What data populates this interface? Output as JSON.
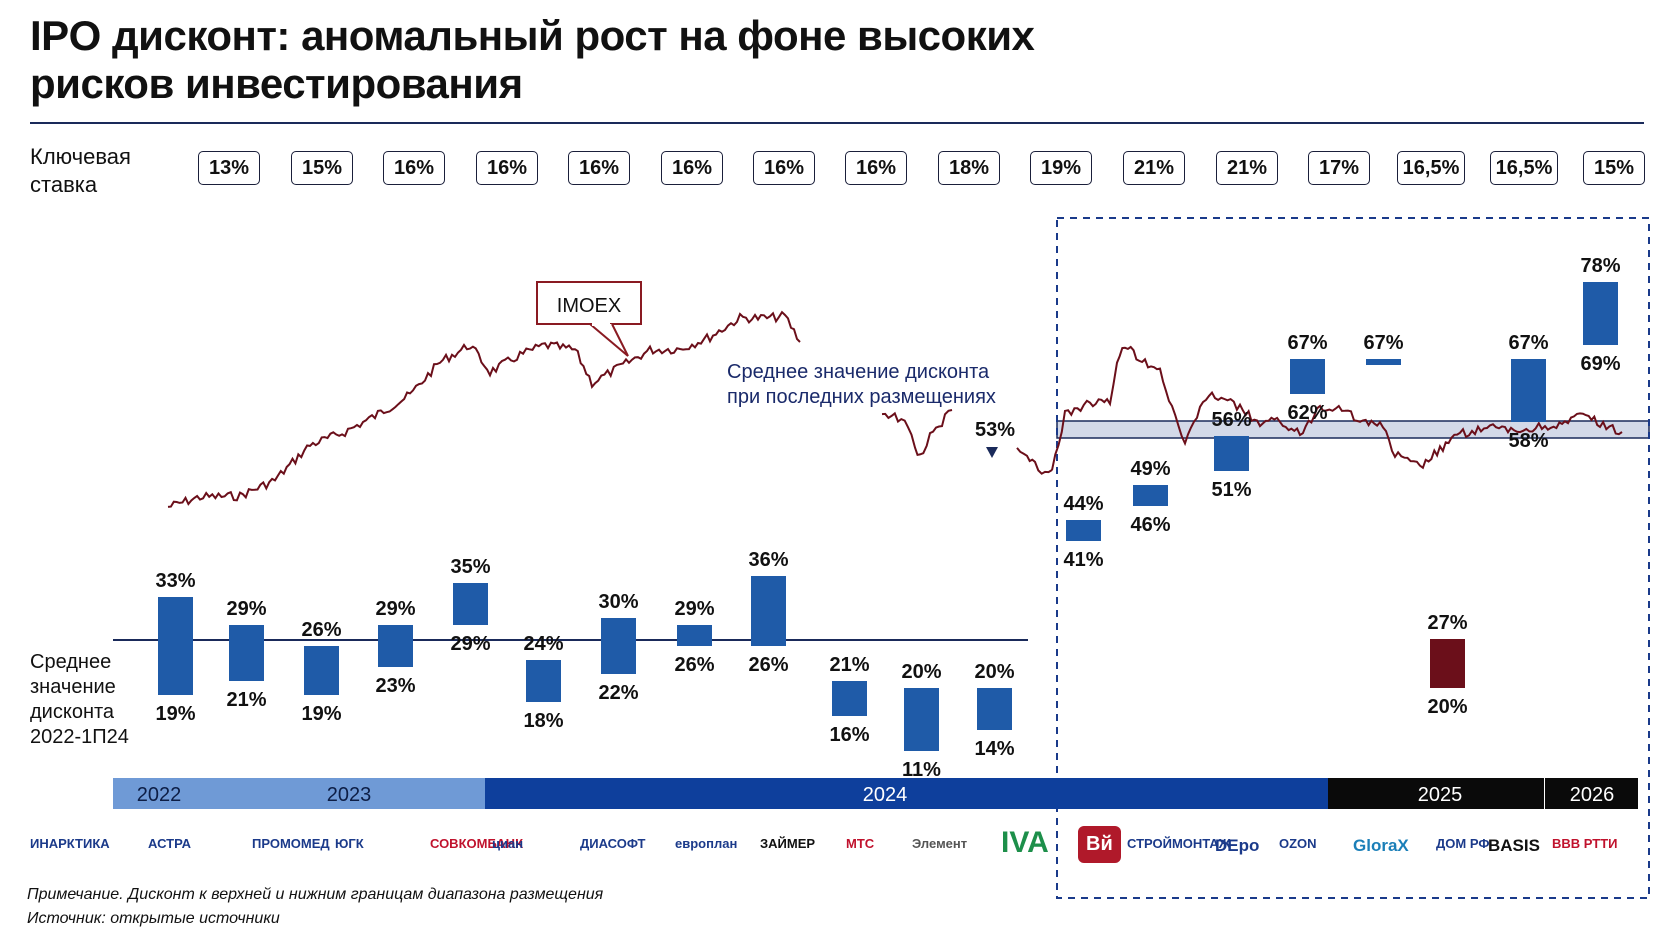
{
  "title_line1": "IPO дисконт: аномальный рост на фоне высоких",
  "title_line2": "рисков инвестирования",
  "key_rate": {
    "label_line1": "Ключевая",
    "label_line2": "ставка",
    "values": [
      "13%",
      "15%",
      "16%",
      "16%",
      "16%",
      "16%",
      "16%",
      "16%",
      "18%",
      "19%",
      "21%",
      "21%",
      "17%",
      "16,5%",
      "16,5%",
      "15%"
    ]
  },
  "avg_label": [
    "Среднее",
    "значение",
    "дисконта",
    "2022-1П24"
  ],
  "imoex_label": "IMOEX",
  "recent_avg_label_line1": "Среднее значение дисконта",
  "recent_avg_label_line2": "при последних размещениях",
  "recent_avg_value": "53%",
  "colors": {
    "bar": "#1f5ba8",
    "bar_dark": "#6b0f1a",
    "imoex": "#6b0f1a",
    "timeline_2022_2023": "#6f9ad6",
    "timeline_2024": "#0e3f9c",
    "timeline_2025_2026": "#0a0a0a",
    "dashed_frame": "#1a3a8a"
  },
  "timeline": [
    {
      "label": "2022"
    },
    {
      "label": "2023"
    },
    {
      "label": "2024"
    },
    {
      "label": "2025"
    },
    {
      "label": "2026"
    }
  ],
  "chart_data": {
    "type": "bar",
    "title": "IPO дисконт: аномальный рост на фоне высоких рисков инвестирования",
    "description_series": "floating range bars: discount to upper and lower bound of placement range",
    "ylim": [
      0,
      80
    ],
    "average_2022_1H24": 27,
    "recent_average": 53,
    "categories": [
      "ИНАРКТИКА",
      "АСТРА",
      "ПРОМОМЕД",
      "ЮГК",
      "СОВКОМБАНК",
      "ЦИАН",
      "ДИАСОФТ",
      "ЕВРОПЛАН",
      "ЗАЙМЕР",
      "МТС",
      "Элемент",
      "IVA",
      "Вуш/Вй",
      "Строймонтаж",
      "DEpo",
      "OZON",
      "GloraX",
      "ДОМ.РФ",
      "BASIS",
      "ВВВ РТТИ"
    ],
    "ranges": [
      {
        "high": 33,
        "low": 19
      },
      {
        "high": 29,
        "low": 21
      },
      {
        "high": 26,
        "low": 19
      },
      {
        "high": 29,
        "low": 23
      },
      {
        "high": 35,
        "low": 29
      },
      {
        "high": 24,
        "low": 18
      },
      {
        "high": 30,
        "low": 22
      },
      {
        "high": 29,
        "low": 26
      },
      {
        "high": 36,
        "low": 26
      },
      {
        "high": 21,
        "low": 16
      },
      {
        "high": 20,
        "low": 11
      },
      {
        "high": 20,
        "low": 14
      },
      {
        "high": 44,
        "low": 41
      },
      {
        "high": 49,
        "low": 46
      },
      {
        "high": 56,
        "low": 51
      },
      {
        "high": 67,
        "low": 62
      },
      {
        "high": 67,
        "low": 67
      },
      {
        "high": 27,
        "low": 20
      },
      {
        "high": 67,
        "low": 58
      },
      {
        "high": 78,
        "low": 69
      }
    ]
  },
  "logos": [
    "ИНАРКТИКА",
    "АСТРА",
    "ПРОМОМЕД",
    "ЮГК",
    "СОВКОМБАНК",
    "циан",
    "ДИАСОФТ",
    "европлан",
    "ЗАЙМЕР",
    "МТС",
    "Элемент",
    "IVA",
    "Вй",
    "СТРОЙМОНТАЖ",
    "DEpo",
    "OZON",
    "GloraX",
    "ДОМ РФ",
    "BASIS",
    "ВВВ РТТИ"
  ],
  "note": "Примечание. Дисконт к верхней и нижним границам диапазона размещения",
  "source": "Источник: открытые источники"
}
